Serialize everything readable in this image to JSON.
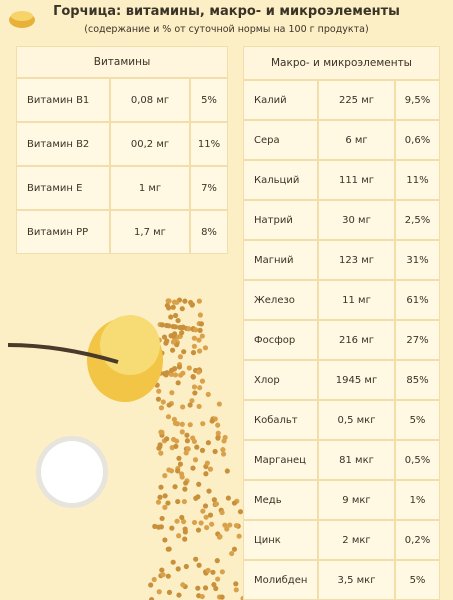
{
  "header": {
    "title": "Горчица: витамины, макро- и микроэлементы",
    "subtitle": "(содержание и % от суточной нормы на 100 г продукта)"
  },
  "vitamins": {
    "heading": "Витамины",
    "rows": [
      [
        "Витамин В1",
        "0,08 мг",
        "5%"
      ],
      [
        "Витамин В2",
        "00,2 мг",
        "11%"
      ],
      [
        "Витамин Е",
        "1 мг",
        "7%"
      ],
      [
        "Витамин РР",
        "1,7 мг",
        "8%"
      ]
    ]
  },
  "minerals": {
    "heading": "Макро- и микроэлементы",
    "rows": [
      [
        "Калий",
        "225 мг",
        "9,5%"
      ],
      [
        "Сера",
        "6 мг",
        "0,6%"
      ],
      [
        "Кальций",
        "111 мг",
        "11%"
      ],
      [
        "Натрий",
        "30 мг",
        "2,5%"
      ],
      [
        "Магний",
        "123 мг",
        "31%"
      ],
      [
        "Железо",
        "11 мг",
        "61%"
      ],
      [
        "Фосфор",
        "216 мг",
        "27%"
      ],
      [
        "Хлор",
        "1945 мг",
        "85%"
      ],
      [
        "Кобальт",
        "0,5 мкг",
        "5%"
      ],
      [
        "Марганец",
        "81 мкг",
        "0,5%"
      ],
      [
        "Медь",
        "9 мкг",
        "1%"
      ],
      [
        "Цинк",
        "2 мкг",
        "0,2%"
      ],
      [
        "Молибден",
        "3,5 мкг",
        "5%"
      ]
    ]
  }
}
